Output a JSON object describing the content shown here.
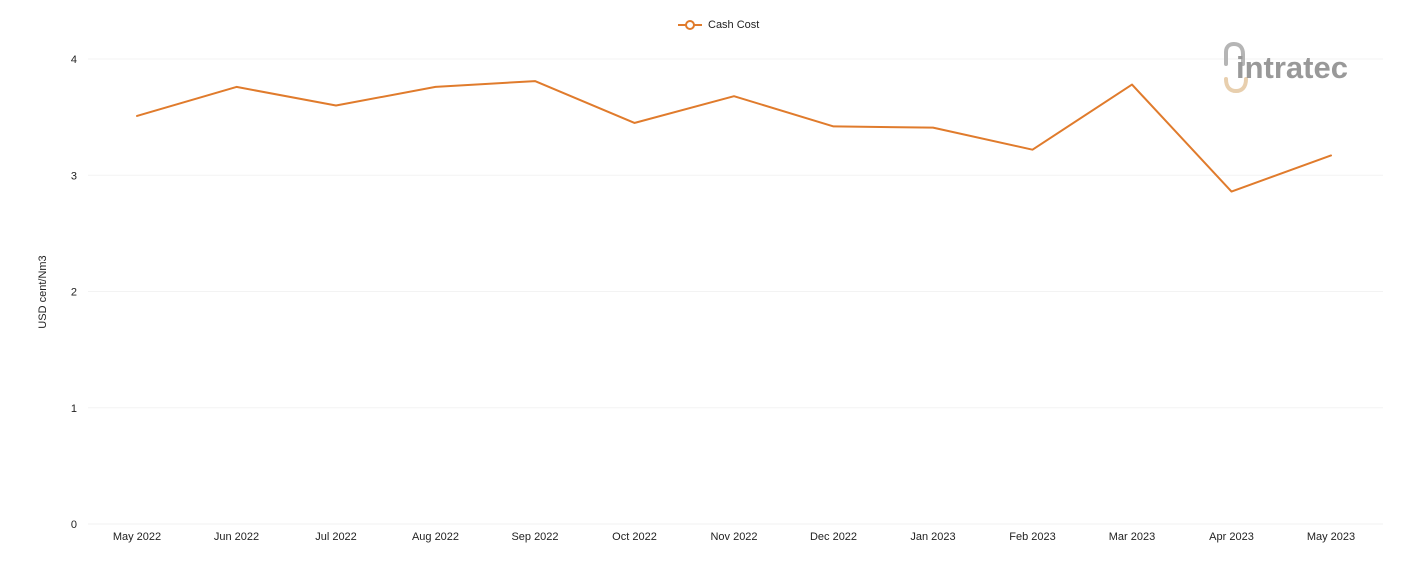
{
  "legend": {
    "label": "Cash Cost"
  },
  "brand": {
    "logo_text": "intratec",
    "logo_color": "#999999",
    "logo_accent": "#e8cfae"
  },
  "chart_data": {
    "type": "line",
    "title": "",
    "xlabel": "",
    "ylabel": "USD cent/Nm3",
    "categories": [
      "May 2022",
      "Jun 2022",
      "Jul 2022",
      "Aug 2022",
      "Sep 2022",
      "Oct 2022",
      "Nov 2022",
      "Dec 2022",
      "Jan 2023",
      "Feb 2023",
      "Mar 2023",
      "Apr 2023",
      "May 2023"
    ],
    "series": [
      {
        "name": "Cash Cost",
        "color": "#e07b2c",
        "values": [
          3.51,
          3.76,
          3.6,
          3.76,
          3.81,
          3.45,
          3.68,
          3.42,
          3.41,
          3.22,
          3.78,
          2.86,
          3.17
        ]
      }
    ],
    "ylim": [
      0,
      4
    ],
    "yticks": [
      0,
      1,
      2,
      3,
      4
    ],
    "grid": true,
    "legend_position": "top-center"
  }
}
